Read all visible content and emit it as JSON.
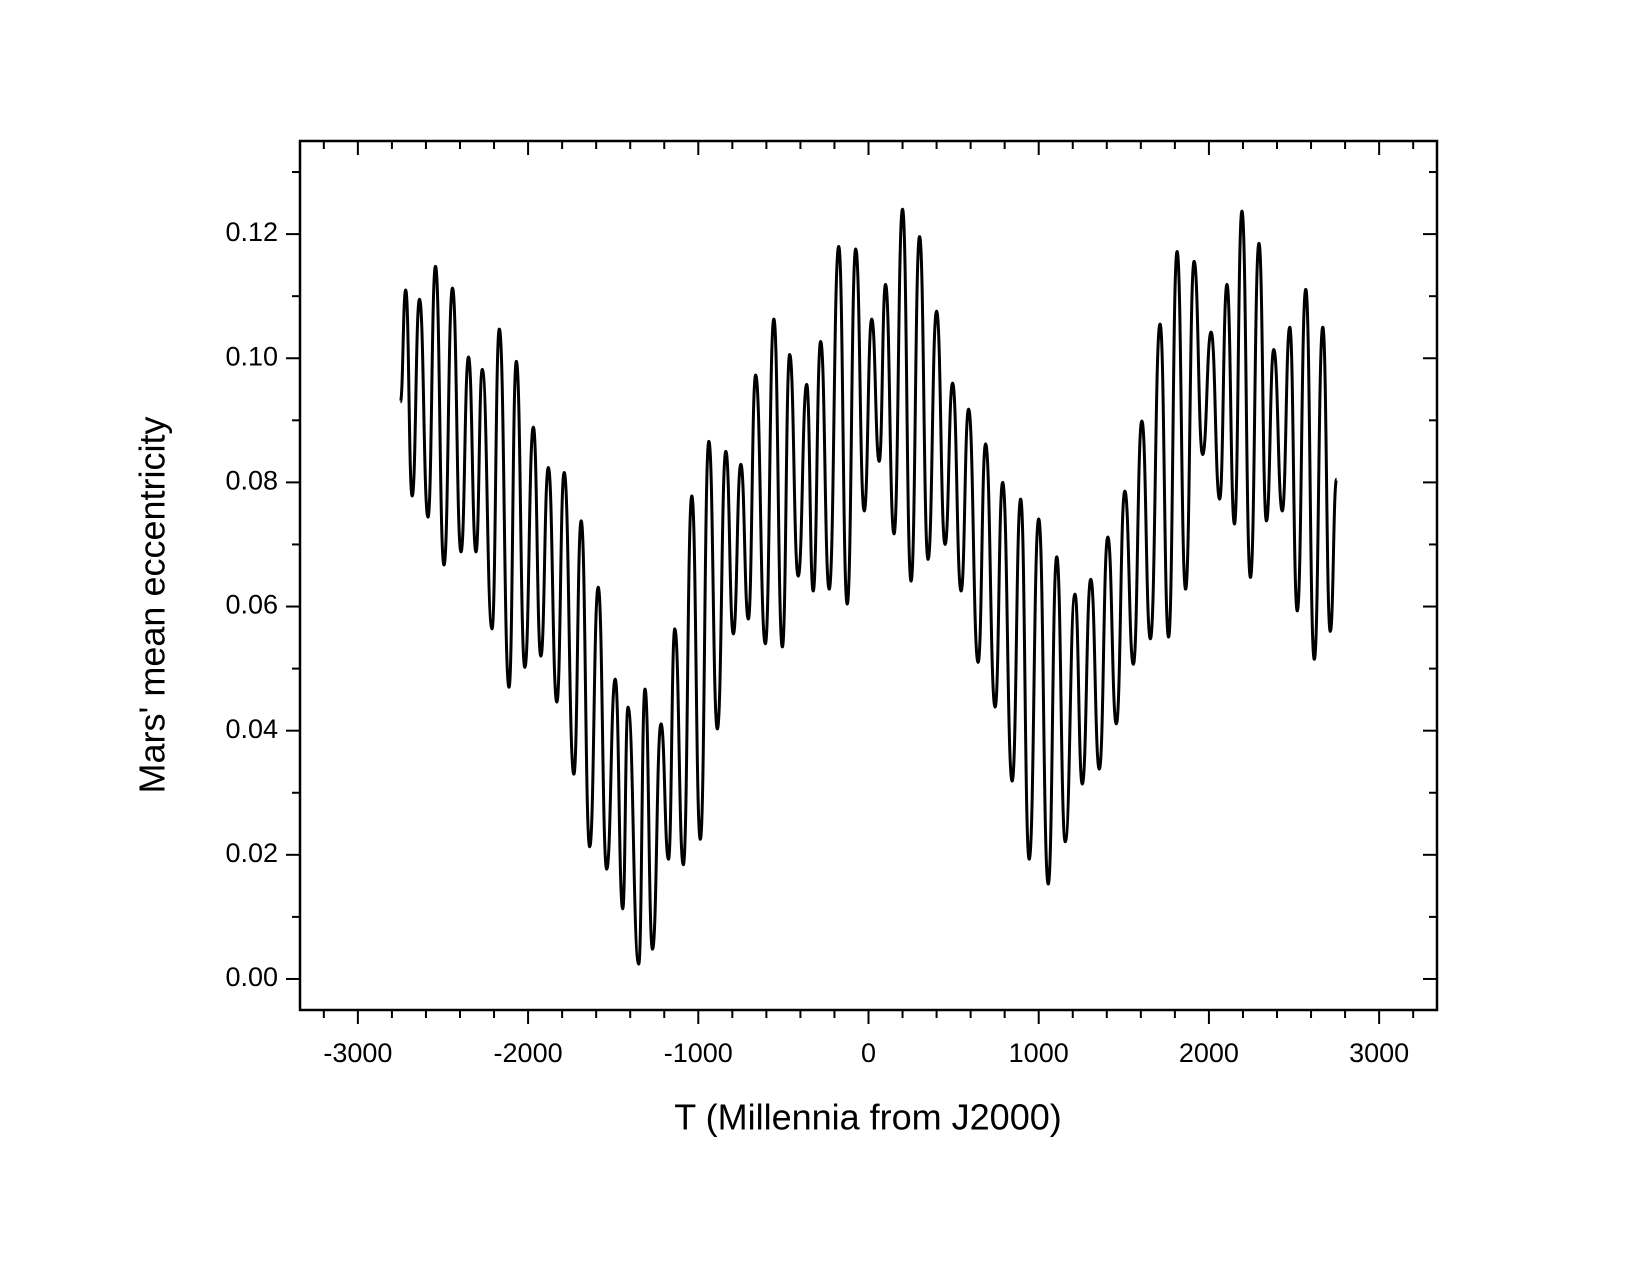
{
  "chart_data": {
    "type": "line",
    "xlabel": "T (Millennia from J2000)",
    "ylabel": "Mars' mean eccentricity",
    "xlim": [
      -3340,
      3340
    ],
    "ylim": [
      -0.005,
      0.135
    ],
    "xticks": [
      -3000,
      -2000,
      -1000,
      0,
      1000,
      2000,
      3000
    ],
    "xticks_minor": [
      -3200,
      -2800,
      -2600,
      -2400,
      -2200,
      -1800,
      -1600,
      -1400,
      -1200,
      -800,
      -600,
      -400,
      -200,
      200,
      400,
      600,
      800,
      1200,
      1400,
      1600,
      1800,
      2200,
      2400,
      2600,
      2800,
      3200
    ],
    "yticks": [
      {
        "value": 0,
        "label": "0.00"
      },
      {
        "value": 0.02,
        "label": "0.02"
      },
      {
        "value": 0.04,
        "label": "0.04"
      },
      {
        "value": 0.06,
        "label": "0.06"
      },
      {
        "value": 0.08,
        "label": "0.08"
      },
      {
        "value": 0.1,
        "label": "0.10"
      },
      {
        "value": 0.12,
        "label": "0.12"
      }
    ],
    "yticks_minor": [
      0.01,
      0.03,
      0.05,
      0.07,
      0.09,
      0.11,
      0.13
    ],
    "color": "#000000",
    "x": [
      -2750,
      -2719,
      -2681,
      -2638,
      -2588,
      -2544,
      -2494,
      -2444,
      -2394,
      -2350,
      -2306,
      -2269,
      -2212,
      -2169,
      -2112,
      -2069,
      -2019,
      -1969,
      -1925,
      -1881,
      -1831,
      -1788,
      -1731,
      -1688,
      -1638,
      -1588,
      -1538,
      -1488,
      -1444,
      -1413,
      -1350,
      -1313,
      -1269,
      -1219,
      -1175,
      -1138,
      -1088,
      -1038,
      -988,
      -938,
      -888,
      -838,
      -794,
      -750,
      -706,
      -663,
      -606,
      -556,
      -506,
      -463,
      -413,
      -363,
      -325,
      -281,
      -231,
      -175,
      -125,
      -75,
      -25,
      19,
      63,
      100,
      150,
      200,
      250,
      300,
      350,
      400,
      450,
      494,
      544,
      588,
      644,
      688,
      744,
      788,
      844,
      894,
      944,
      1000,
      1056,
      1106,
      1156,
      1213,
      1256,
      1306,
      1356,
      1406,
      1456,
      1506,
      1556,
      1606,
      1656,
      1713,
      1763,
      1813,
      1863,
      1913,
      1963,
      2013,
      2063,
      2106,
      2150,
      2194,
      2244,
      2294,
      2338,
      2381,
      2431,
      2475,
      2519,
      2569,
      2619,
      2669,
      2713,
      2750
    ],
    "values": [
      0.093,
      0.111,
      0.0778,
      0.1095,
      0.0744,
      0.1148,
      0.0667,
      0.1113,
      0.0688,
      0.1002,
      0.0688,
      0.0982,
      0.0564,
      0.1047,
      0.047,
      0.0995,
      0.0502,
      0.0889,
      0.052,
      0.0824,
      0.0446,
      0.0816,
      0.033,
      0.0738,
      0.0213,
      0.0631,
      0.0177,
      0.0483,
      0.0113,
      0.0438,
      0.0024,
      0.0467,
      0.0048,
      0.0411,
      0.0193,
      0.0564,
      0.0184,
      0.0778,
      0.0225,
      0.0866,
      0.0403,
      0.085,
      0.0556,
      0.0829,
      0.058,
      0.0973,
      0.054,
      0.1063,
      0.0535,
      0.1006,
      0.0649,
      0.0958,
      0.0625,
      0.1027,
      0.0628,
      0.118,
      0.0604,
      0.1176,
      0.0754,
      0.1063,
      0.0834,
      0.1119,
      0.0717,
      0.124,
      0.0641,
      0.1196,
      0.0676,
      0.1076,
      0.07,
      0.096,
      0.0625,
      0.0918,
      0.051,
      0.0862,
      0.0438,
      0.08,
      0.0319,
      0.0773,
      0.0193,
      0.0741,
      0.0153,
      0.068,
      0.0221,
      0.062,
      0.0314,
      0.0644,
      0.0338,
      0.0712,
      0.0411,
      0.0786,
      0.0507,
      0.0899,
      0.0548,
      0.1055,
      0.0551,
      0.1172,
      0.0628,
      0.1156,
      0.0845,
      0.1042,
      0.0773,
      0.1119,
      0.0733,
      0.1237,
      0.0647,
      0.1185,
      0.0738,
      0.1014,
      0.0754,
      0.105,
      0.0593,
      0.1111,
      0.0515,
      0.105,
      0.056,
      0.0805
    ]
  }
}
